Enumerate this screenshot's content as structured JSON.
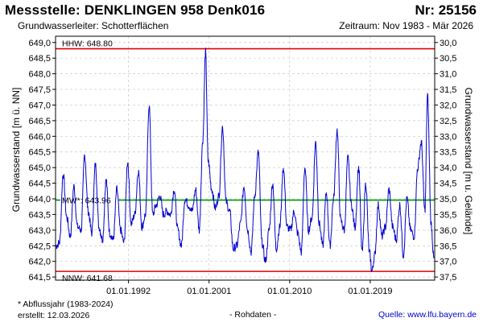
{
  "header": {
    "title": "Messstelle: DENKLINGEN 958  Denk016",
    "station_nr": "Nr: 25156",
    "aquifer": "Grundwasserleiter:   Schotterflächen",
    "period": "Zeitraum: Nov 1983 - Mär 2026"
  },
  "footer": {
    "footnote": "* Abflussjahr (1983-2024)",
    "created": "erstellt:  12.03.2026",
    "raw_data": "- Rohdaten -",
    "source": "Quelle: www.lfu.bayern.de"
  },
  "chart_data": {
    "type": "line",
    "title": "",
    "ylabel": "Grundwasserstand [m ü. NN]",
    "ylabel_right": "Grundwasserstand [m u. Gelände]",
    "xlabel": "",
    "ylim": [
      641.4,
      649.2
    ],
    "yticks": [
      "641,5",
      "642,0",
      "642,5",
      "643,0",
      "643,5",
      "644,0",
      "644,5",
      "645,0",
      "645,5",
      "646,0",
      "646,5",
      "647,0",
      "647,5",
      "648,0",
      "648,5",
      "649,0"
    ],
    "yticks_right": [
      "30,0",
      "30,5",
      "31,0",
      "31,5",
      "32,0",
      "32,5",
      "33,0",
      "33,5",
      "34,0",
      "34,5",
      "35,0",
      "35,5",
      "36,0",
      "36,5",
      "37,0",
      "37,5"
    ],
    "right_axis_ground_level": 679.0,
    "xlim": [
      1983.85,
      2026.2
    ],
    "xticks": [
      {
        "label": "01.01.1992",
        "value": 1992.0
      },
      {
        "label": "01.01.2001",
        "value": 2001.0
      },
      {
        "label": "01.01.2010",
        "value": 2010.0
      },
      {
        "label": "01.01.2019",
        "value": 2019.0
      }
    ],
    "grid": true,
    "reference_lines": [
      {
        "label": "HHW: 648.80",
        "value": 648.8,
        "color": "#e00000"
      },
      {
        "label": "MW*: 643.96",
        "value": 643.96,
        "color": "#009900"
      },
      {
        "label": "NNW: 641.68",
        "value": 641.68,
        "color": "#e00000"
      }
    ],
    "series": [
      {
        "color": "#0000cc",
        "x": [
          1983.9,
          1984.3,
          1984.7,
          1985.1,
          1985.5,
          1985.9,
          1986.3,
          1986.7,
          1987.1,
          1987.5,
          1987.9,
          1988.3,
          1988.7,
          1989.1,
          1989.5,
          1989.9,
          1990.3,
          1990.7,
          1991.1,
          1991.5,
          1991.9,
          1992.3,
          1992.7,
          1993.1,
          1993.5,
          1993.9,
          1994.3,
          1994.7,
          1995.1,
          1995.5,
          1995.9,
          1996.3,
          1996.7,
          1997.1,
          1997.5,
          1997.9,
          1998.3,
          1998.7,
          1999.1,
          1999.5,
          1999.9,
          2000.3,
          2000.6,
          2000.9,
          2001.3,
          2001.7,
          2002.1,
          2002.5,
          2002.9,
          2003.3,
          2003.7,
          2004.1,
          2004.5,
          2004.9,
          2005.3,
          2005.7,
          2006.1,
          2006.5,
          2006.9,
          2007.3,
          2007.7,
          2008.1,
          2008.5,
          2008.9,
          2009.3,
          2009.7,
          2010.1,
          2010.5,
          2010.9,
          2011.3,
          2011.7,
          2012.1,
          2012.5,
          2012.9,
          2013.3,
          2013.7,
          2014.1,
          2014.5,
          2014.9,
          2015.3,
          2015.7,
          2016.1,
          2016.5,
          2016.9,
          2017.3,
          2017.7,
          2018.1,
          2018.5,
          2018.9,
          2019.2,
          2019.5,
          2019.9,
          2020.3,
          2020.7,
          2021.1,
          2021.5,
          2021.9,
          2022.3,
          2022.7,
          2023.1,
          2023.5,
          2023.9,
          2024.3,
          2024.7,
          2025.1,
          2025.4,
          2025.8,
          2026.1
        ],
        "values": [
          642.5,
          642.6,
          644.8,
          643.4,
          642.8,
          644.4,
          643.1,
          643.0,
          645.4,
          643.6,
          642.9,
          645.1,
          643.1,
          642.7,
          644.6,
          642.9,
          642.7,
          644.3,
          643.0,
          642.6,
          645.2,
          643.2,
          643.5,
          644.9,
          643.1,
          643.5,
          647.0,
          643.5,
          643.8,
          644.1,
          643.5,
          643.6,
          643.5,
          644.3,
          643.0,
          642.5,
          644.0,
          643.8,
          643.6,
          644.3,
          643.0,
          645.9,
          648.7,
          645.2,
          644.3,
          643.7,
          644.1,
          646.3,
          643.9,
          643.6,
          642.4,
          642.5,
          643.2,
          644.4,
          643.0,
          642.3,
          644.1,
          645.5,
          642.6,
          642.0,
          643.0,
          644.5,
          642.4,
          643.1,
          645.0,
          643.1,
          643.0,
          643.6,
          642.9,
          642.3,
          645.0,
          643.0,
          643.4,
          645.8,
          643.2,
          642.5,
          644.2,
          642.5,
          644.0,
          646.2,
          643.3,
          643.0,
          645.3,
          643.8,
          643.1,
          645.0,
          642.3,
          644.5,
          642.3,
          641.7,
          642.2,
          643.8,
          642.8,
          643.1,
          644.3,
          643.1,
          642.7,
          643.8,
          642.2,
          644.0,
          643.0,
          642.8,
          645.0,
          645.8,
          643.6,
          647.3,
          643.2,
          642.1
        ]
      }
    ]
  }
}
